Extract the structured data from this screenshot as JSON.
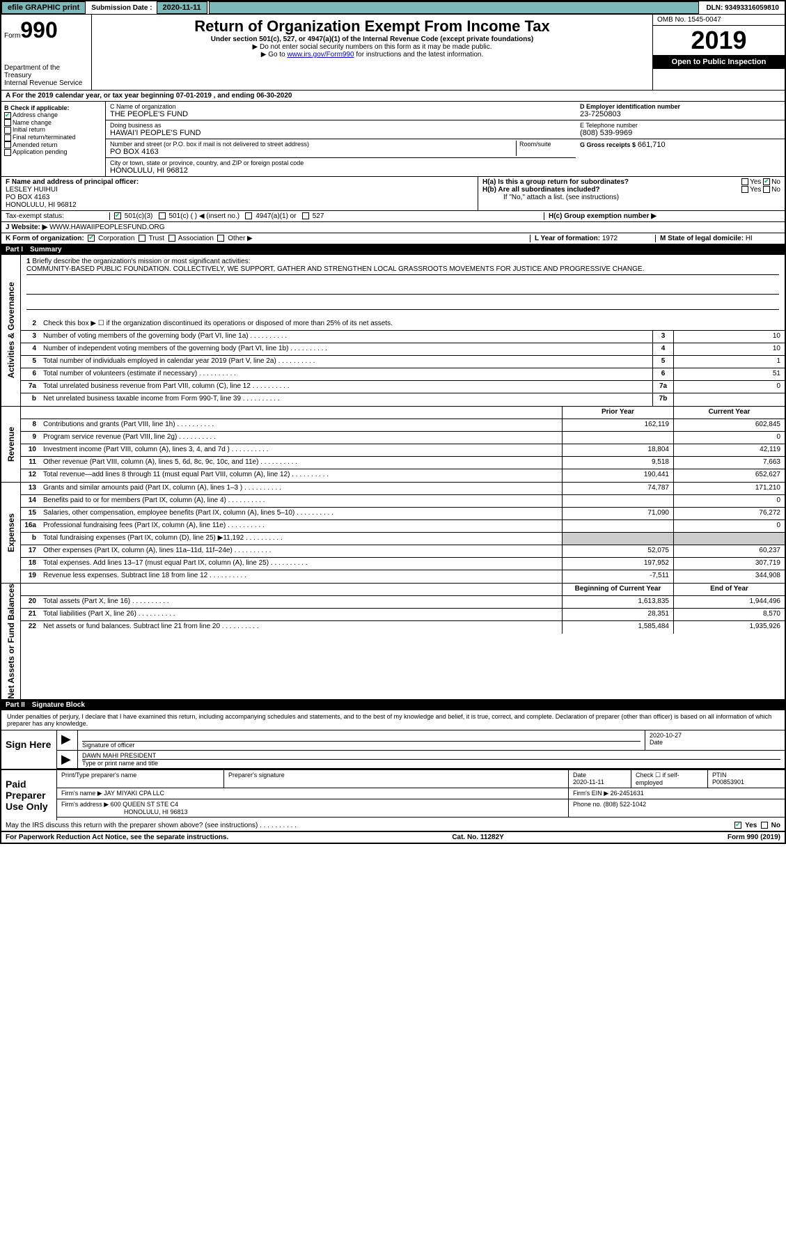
{
  "topbar": {
    "efile": "efile GRAPHIC print",
    "submission_label": "Submission Date :",
    "submission_date": "2020-11-11",
    "dln_label": "DLN:",
    "dln": "93493316059810"
  },
  "header": {
    "form_word": "Form",
    "form_num": "990",
    "dept": "Department of the Treasury\nInternal Revenue Service",
    "title": "Return of Organization Exempt From Income Tax",
    "subtitle": "Under section 501(c), 527, or 4947(a)(1) of the Internal Revenue Code (except private foundations)",
    "note1": "▶ Do not enter social security numbers on this form as it may be made public.",
    "note2_pre": "▶ Go to ",
    "note2_link": "www.irs.gov/Form990",
    "note2_post": " for instructions and the latest information.",
    "omb": "OMB No. 1545-0047",
    "year": "2019",
    "open": "Open to Public Inspection"
  },
  "period": "A For the 2019 calendar year, or tax year beginning 07-01-2019    , and ending 06-30-2020",
  "box_b": {
    "label": "B Check if applicable:",
    "items": [
      {
        "checked": true,
        "text": "Address change"
      },
      {
        "checked": false,
        "text": "Name change"
      },
      {
        "checked": false,
        "text": "Initial return"
      },
      {
        "checked": false,
        "text": "Final return/terminated"
      },
      {
        "checked": false,
        "text": "Amended return"
      },
      {
        "checked": false,
        "text": "Application pending"
      }
    ]
  },
  "box_c": {
    "name_label": "C Name of organization",
    "name": "THE PEOPLE'S FUND",
    "dba_label": "Doing business as",
    "dba": "HAWAI'I PEOPLE'S FUND",
    "addr_label": "Number and street (or P.O. box if mail is not delivered to street address)",
    "room_label": "Room/suite",
    "addr": "PO BOX 4163",
    "city_label": "City or town, state or province, country, and ZIP or foreign postal code",
    "city": "HONOLULU, HI  96812"
  },
  "box_d": {
    "label": "D Employer identification number",
    "val": "23-7250803"
  },
  "box_e": {
    "label": "E Telephone number",
    "val": "(808) 539-9969"
  },
  "box_g": {
    "label": "G Gross receipts $",
    "val": "661,710"
  },
  "box_f": {
    "label": "F  Name and address of principal officer:",
    "name": "LESLEY HUIHUI",
    "addr1": "PO BOX 4163",
    "addr2": "HONOLULU, HI  96812"
  },
  "box_h": {
    "a": "H(a)  Is this a group return for subordinates?",
    "a_yes": "Yes",
    "a_no": "No",
    "b": "H(b)  Are all subordinates included?",
    "b_yes": "Yes",
    "b_no": "No",
    "note": "If \"No,\" attach a list. (see instructions)",
    "c": "H(c)  Group exemption number ▶"
  },
  "tax_exempt": {
    "label": "Tax-exempt status:",
    "opts": [
      "501(c)(3)",
      "501(c) (  ) ◀ (insert no.)",
      "4947(a)(1) or",
      "527"
    ]
  },
  "website": {
    "label": "J   Website: ▶",
    "val": "WWW.HAWAIIPEOPLESFUND.ORG"
  },
  "box_k": {
    "label": "K Form of organization:",
    "opts": [
      "Corporation",
      "Trust",
      "Association",
      "Other ▶"
    ]
  },
  "box_l": {
    "label": "L Year of formation:",
    "val": "1972"
  },
  "box_m": {
    "label": "M State of legal domicile:",
    "val": "HI"
  },
  "part1": {
    "num": "Part I",
    "title": "Summary"
  },
  "mission": {
    "num": "1",
    "label": "Briefly describe the organization's mission or most significant activities:",
    "text": "COMMUNITY-BASED PUBLIC FOUNDATION. COLLECTIVELY, WE SUPPORT, GATHER AND STRENGTHEN LOCAL GRASSROOTS MOVEMENTS FOR JUSTICE AND PROGRESSIVE CHANGE."
  },
  "line2": "Check this box ▶ ☐ if the organization discontinued its operations or disposed of more than 25% of its net assets.",
  "sections": {
    "activities": "Activities & Governance",
    "revenue": "Revenue",
    "expenses": "Expenses",
    "netassets": "Net Assets or Fund Balances"
  },
  "gov_lines": [
    {
      "n": "3",
      "desc": "Number of voting members of the governing body (Part VI, line 1a)",
      "box": "3",
      "val": "10"
    },
    {
      "n": "4",
      "desc": "Number of independent voting members of the governing body (Part VI, line 1b)",
      "box": "4",
      "val": "10"
    },
    {
      "n": "5",
      "desc": "Total number of individuals employed in calendar year 2019 (Part V, line 2a)",
      "box": "5",
      "val": "1"
    },
    {
      "n": "6",
      "desc": "Total number of volunteers (estimate if necessary)",
      "box": "6",
      "val": "51"
    },
    {
      "n": "7a",
      "desc": "Total unrelated business revenue from Part VIII, column (C), line 12",
      "box": "7a",
      "val": "0"
    },
    {
      "n": "b",
      "desc": "Net unrelated business taxable income from Form 990-T, line 39",
      "box": "7b",
      "val": ""
    }
  ],
  "col_hdrs": {
    "prior": "Prior Year",
    "current": "Current Year"
  },
  "rev_lines": [
    {
      "n": "8",
      "desc": "Contributions and grants (Part VIII, line 1h)",
      "py": "162,119",
      "cy": "602,845"
    },
    {
      "n": "9",
      "desc": "Program service revenue (Part VIII, line 2g)",
      "py": "",
      "cy": "0"
    },
    {
      "n": "10",
      "desc": "Investment income (Part VIII, column (A), lines 3, 4, and 7d )",
      "py": "18,804",
      "cy": "42,119"
    },
    {
      "n": "11",
      "desc": "Other revenue (Part VIII, column (A), lines 5, 6d, 8c, 9c, 10c, and 11e)",
      "py": "9,518",
      "cy": "7,663"
    },
    {
      "n": "12",
      "desc": "Total revenue—add lines 8 through 11 (must equal Part VIII, column (A), line 12)",
      "py": "190,441",
      "cy": "652,627"
    }
  ],
  "exp_lines": [
    {
      "n": "13",
      "desc": "Grants and similar amounts paid (Part IX, column (A), lines 1–3 )",
      "py": "74,787",
      "cy": "171,210"
    },
    {
      "n": "14",
      "desc": "Benefits paid to or for members (Part IX, column (A), line 4)",
      "py": "",
      "cy": "0"
    },
    {
      "n": "15",
      "desc": "Salaries, other compensation, employee benefits (Part IX, column (A), lines 5–10)",
      "py": "71,090",
      "cy": "76,272"
    },
    {
      "n": "16a",
      "desc": "Professional fundraising fees (Part IX, column (A), line 11e)",
      "py": "",
      "cy": "0"
    },
    {
      "n": "b",
      "desc": "Total fundraising expenses (Part IX, column (D), line 25) ▶11,192",
      "py": "shade",
      "cy": "shade"
    },
    {
      "n": "17",
      "desc": "Other expenses (Part IX, column (A), lines 11a–11d, 11f–24e)",
      "py": "52,075",
      "cy": "60,237"
    },
    {
      "n": "18",
      "desc": "Total expenses. Add lines 13–17 (must equal Part IX, column (A), line 25)",
      "py": "197,952",
      "cy": "307,719"
    },
    {
      "n": "19",
      "desc": "Revenue less expenses. Subtract line 18 from line 12",
      "py": "-7,511",
      "cy": "344,908"
    }
  ],
  "na_hdrs": {
    "begin": "Beginning of Current Year",
    "end": "End of Year"
  },
  "na_lines": [
    {
      "n": "20",
      "desc": "Total assets (Part X, line 16)",
      "py": "1,613,835",
      "cy": "1,944,496"
    },
    {
      "n": "21",
      "desc": "Total liabilities (Part X, line 26)",
      "py": "28,351",
      "cy": "8,570"
    },
    {
      "n": "22",
      "desc": "Net assets or fund balances. Subtract line 21 from line 20",
      "py": "1,585,484",
      "cy": "1,935,926"
    }
  ],
  "part2": {
    "num": "Part II",
    "title": "Signature Block"
  },
  "sig_decl": "Under penalties of perjury, I declare that I have examined this return, including accompanying schedules and statements, and to the best of my knowledge and belief, it is true, correct, and complete. Declaration of preparer (other than officer) is based on all information of which preparer has any knowledge.",
  "sign_here": "Sign Here",
  "sig_officer_label": "Signature of officer",
  "sig_date_label": "Date",
  "sig_date": "2020-10-27",
  "sig_name": "DAWN MAHI  PRESIDENT",
  "sig_name_label": "Type or print name and title",
  "paid_prep": "Paid Preparer Use Only",
  "prep": {
    "print_label": "Print/Type preparer's name",
    "sig_label": "Preparer's signature",
    "date_label": "Date",
    "date": "2020-11-11",
    "check_label": "Check ☐ if self-employed",
    "ptin_label": "PTIN",
    "ptin": "P00853901",
    "firm_name_label": "Firm's name    ▶",
    "firm_name": "JAY MIYAKI CPA LLC",
    "firm_ein_label": "Firm's EIN ▶",
    "firm_ein": "26-2451631",
    "firm_addr_label": "Firm's address ▶",
    "firm_addr1": "600 QUEEN ST STE C4",
    "firm_addr2": "HONOLULU, HI  96813",
    "phone_label": "Phone no.",
    "phone": "(808) 522-1042"
  },
  "irs_discuss": "May the IRS discuss this return with the preparer shown above? (see instructions)",
  "irs_yes": "Yes",
  "irs_no": "No",
  "footer": {
    "left": "For Paperwork Reduction Act Notice, see the separate instructions.",
    "mid": "Cat. No. 11282Y",
    "right": "Form 990 (2019)"
  }
}
